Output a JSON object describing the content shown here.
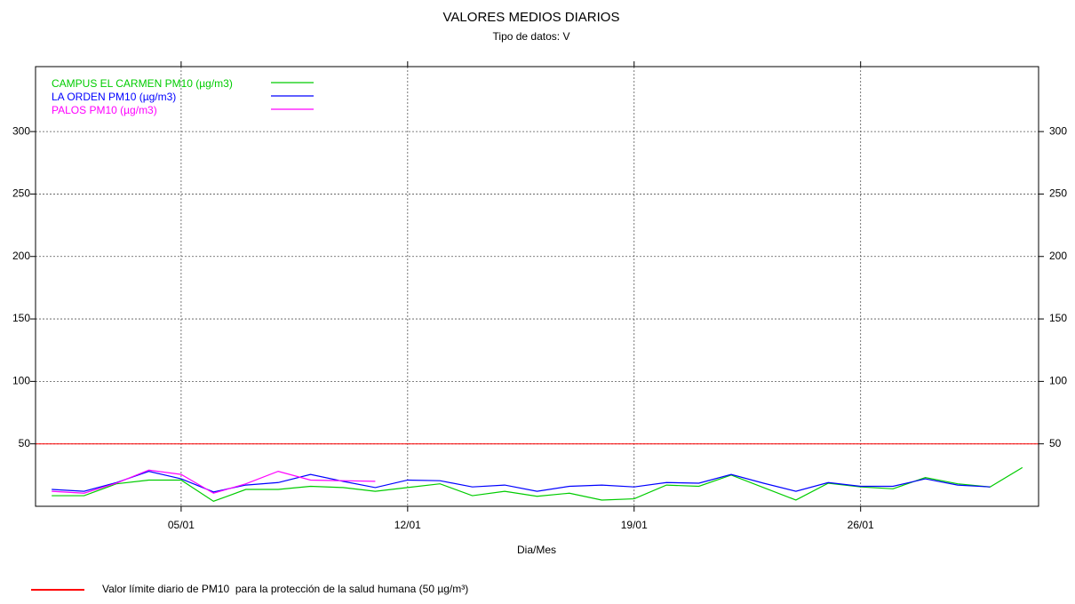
{
  "chart_data": {
    "type": "line",
    "title": "VALORES MEDIOS DIARIOS",
    "subtitle": "Tipo de datos: V",
    "x_label": "Dia/Mes",
    "categories": [
      null,
      null,
      null,
      null,
      "05/01",
      null,
      null,
      null,
      null,
      null,
      null,
      "12/01",
      null,
      null,
      null,
      null,
      null,
      null,
      "19/01",
      null,
      null,
      null,
      null,
      null,
      null,
      "26/01",
      null,
      null,
      null,
      null,
      null
    ],
    "series": [
      {
        "name": "CAMPUS EL CARMEN PM10 (µg/m3)",
        "color": "#00cc00",
        "values": [
          8.5,
          8.5,
          18,
          21,
          21,
          4,
          13.5,
          13.5,
          16,
          15,
          12,
          15,
          18,
          8.5,
          12,
          8,
          10.5,
          5,
          6,
          17,
          16,
          25,
          15,
          5,
          18.5,
          15.5,
          14,
          23,
          18,
          15.5,
          31
        ]
      },
      {
        "name": "LA ORDEN PM10 (µg/m3)",
        "color": "#0000ff",
        "values": [
          13.5,
          12,
          19,
          28,
          22,
          11.5,
          17,
          19,
          25.5,
          20,
          15,
          21,
          20.5,
          15.5,
          17,
          12,
          16,
          17,
          15.5,
          19,
          18.5,
          25.5,
          18.5,
          12,
          19,
          16,
          16,
          22,
          17,
          15.5,
          null
        ]
      },
      {
        "name": "PALOS PM10 (µg/m3)",
        "color": "#ff00ff",
        "values": [
          12,
          10.5,
          18.5,
          29,
          25.5,
          10.5,
          18,
          28,
          21,
          20.5,
          20,
          null,
          null,
          null,
          null,
          null,
          null,
          null,
          null,
          null,
          null,
          null,
          null,
          null,
          null,
          null,
          null,
          null,
          null,
          null,
          null
        ]
      }
    ],
    "ylim": [
      0,
      352
    ],
    "yticks": [
      50,
      100,
      150,
      200,
      250,
      300
    ],
    "grid": true,
    "limit_line": {
      "value": 50,
      "color": "#ff0000",
      "label": "Valor límite diario de PM10  para la protección de la salud humana (50 µg/m³)"
    }
  }
}
